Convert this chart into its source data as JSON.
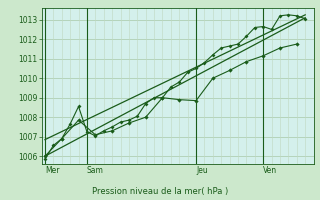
{
  "background_color": "#cce8cc",
  "plot_bg_color": "#d4f0ec",
  "grid_color_major": "#a8c8a8",
  "grid_color_minor": "#c0d8c0",
  "line_color": "#1a5c1a",
  "title": "Pression niveau de la mer( hPa )",
  "day_labels": [
    "Mer",
    "Sam",
    "Jeu",
    "Ven"
  ],
  "day_positions": [
    0,
    2.5,
    9,
    13
  ],
  "ylim": [
    1005.6,
    1013.6
  ],
  "yticks": [
    1006,
    1007,
    1008,
    1009,
    1010,
    1011,
    1012,
    1013
  ],
  "xlim": [
    -0.2,
    16.0
  ],
  "series_main_x": [
    0,
    0.5,
    1.0,
    1.5,
    2.0,
    2.5,
    3.0,
    3.5,
    4.0,
    4.5,
    5.0,
    5.5,
    6.0,
    6.5,
    7.0,
    7.5,
    8.0,
    8.5,
    9.0,
    9.5,
    10.0,
    10.5,
    11.0,
    11.5,
    12.0,
    12.5,
    13.0,
    13.5,
    14.0,
    14.5,
    15.0,
    15.5
  ],
  "series_main_y": [
    1005.85,
    1006.55,
    1006.9,
    1007.65,
    1008.55,
    1007.25,
    1007.05,
    1007.3,
    1007.5,
    1007.75,
    1007.85,
    1008.05,
    1008.7,
    1009.0,
    1009.0,
    1009.55,
    1009.8,
    1010.3,
    1010.5,
    1010.8,
    1011.2,
    1011.55,
    1011.65,
    1011.75,
    1012.15,
    1012.6,
    1012.65,
    1012.5,
    1013.2,
    1013.25,
    1013.2,
    1013.05
  ],
  "series2_x": [
    0,
    1,
    2,
    3,
    4,
    5,
    6,
    7,
    8,
    9,
    10,
    11,
    12,
    13,
    14,
    15
  ],
  "series2_y": [
    1006.0,
    1006.9,
    1007.85,
    1007.1,
    1007.3,
    1007.7,
    1008.0,
    1009.0,
    1008.9,
    1008.85,
    1010.0,
    1010.4,
    1010.85,
    1011.15,
    1011.55,
    1011.75
  ],
  "trend1_x": [
    0,
    15.5
  ],
  "trend1_y": [
    1006.0,
    1013.1
  ],
  "trend2_x": [
    0,
    15.5
  ],
  "trend2_y": [
    1006.85,
    1013.25
  ]
}
